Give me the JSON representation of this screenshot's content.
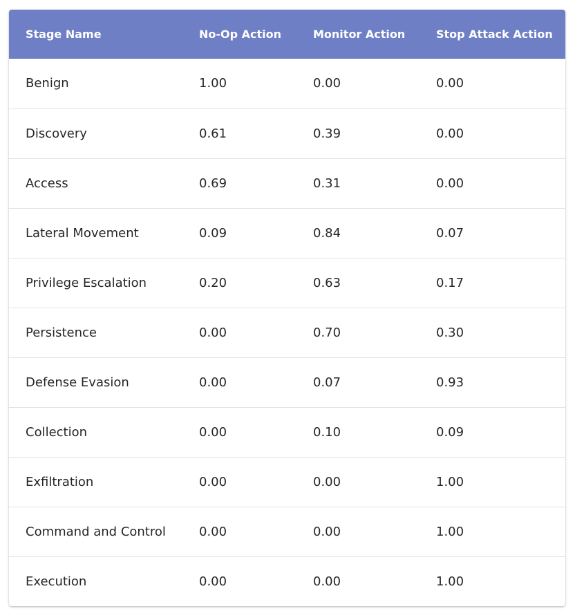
{
  "table": {
    "headers": [
      "Stage Name",
      "No-Op Action",
      "Monitor Action",
      "Stop Attack Action"
    ],
    "rows": [
      [
        "Benign",
        "1.00",
        "0.00",
        "0.00"
      ],
      [
        "Discovery",
        "0.61",
        "0.39",
        "0.00"
      ],
      [
        "Access",
        "0.69",
        "0.31",
        "0.00"
      ],
      [
        "Lateral Movement",
        "0.09",
        "0.84",
        "0.07"
      ],
      [
        "Privilege Escalation",
        "0.20",
        "0.63",
        "0.17"
      ],
      [
        "Persistence",
        "0.00",
        "0.70",
        "0.30"
      ],
      [
        "Defense Evasion",
        "0.00",
        "0.07",
        "0.93"
      ],
      [
        "Collection",
        "0.00",
        "0.10",
        "0.09"
      ],
      [
        "Exfiltration",
        "0.00",
        "0.00",
        "1.00"
      ],
      [
        "Command and Control",
        "0.00",
        "0.00",
        "1.00"
      ],
      [
        "Execution",
        "0.00",
        "0.00",
        "1.00"
      ]
    ]
  },
  "colors": {
    "header_background": "#6f7fc6",
    "header_text": "#ffffff",
    "cell_text": "#262626",
    "row_divider": "#e2e2e2"
  }
}
